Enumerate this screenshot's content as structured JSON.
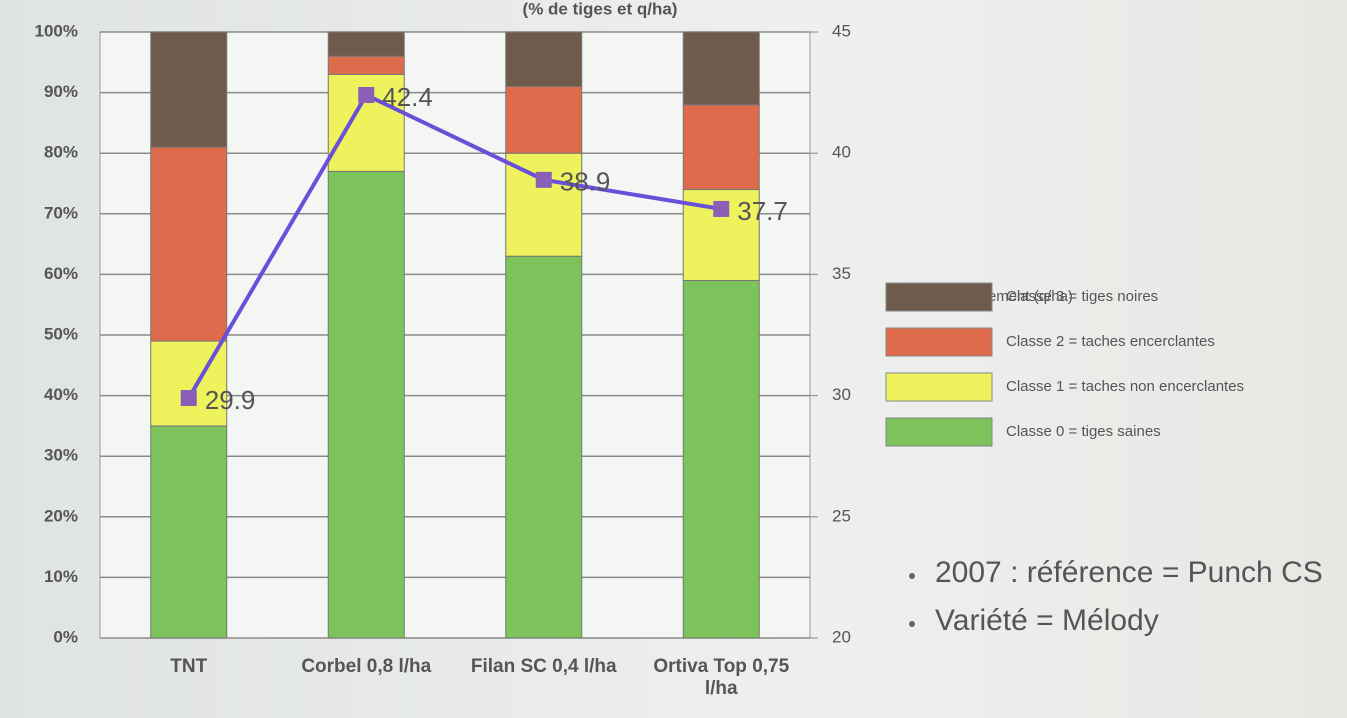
{
  "chart_data": {
    "type": "bar",
    "stacked": true,
    "title": "(% de tiges et q/ha)",
    "categories": [
      "TNT",
      "Corbel 0,8 l/ha",
      "Filan SC 0,4 l/ha",
      "Ortiva Top 0,75 l/ha"
    ],
    "series": [
      {
        "name": "Classe 0 = tiges saines",
        "color": "#7cc35b",
        "values": [
          35,
          77,
          63,
          59
        ]
      },
      {
        "name": "Classe 1 = taches non encerclantes",
        "color": "#eef25c",
        "values": [
          14,
          16,
          17,
          15
        ]
      },
      {
        "name": "Classe 2 = taches encerclantes",
        "color": "#de6b4b",
        "values": [
          32,
          3,
          11,
          14
        ]
      },
      {
        "name": "Classe 3 = tiges noires",
        "color": "#6f5b4b",
        "values": [
          19,
          4,
          9,
          12
        ]
      },
      {
        "name": "Rendement (q/ha)",
        "type": "line",
        "axis": "y2",
        "color": "#6a4fd8",
        "values": [
          29.9,
          42.4,
          38.9,
          37.7
        ]
      }
    ],
    "ylim": [
      0,
      100
    ],
    "yticks": [
      {
        "value": 0,
        "label": "0%"
      },
      {
        "value": 10,
        "label": "10%"
      },
      {
        "value": 20,
        "label": "20%"
      },
      {
        "value": 30,
        "label": "30%"
      },
      {
        "value": 40,
        "label": "40%"
      },
      {
        "value": 50,
        "label": "50%"
      },
      {
        "value": 60,
        "label": "60%"
      },
      {
        "value": 70,
        "label": "70%"
      },
      {
        "value": 80,
        "label": "80%"
      },
      {
        "value": 90,
        "label": "90%"
      },
      {
        "value": 100,
        "label": "100%"
      }
    ],
    "y2lim": [
      20,
      45
    ],
    "y2ticks": [
      20,
      25,
      30,
      35,
      40,
      45
    ],
    "grid": true,
    "legend": "right",
    "notes": [
      "2007 : référence = Punch CS",
      "Variété = Mélody"
    ]
  }
}
